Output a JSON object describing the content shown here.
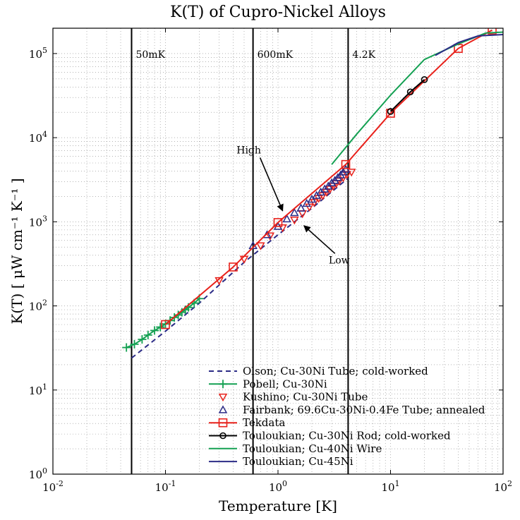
{
  "chart_data": {
    "type": "line",
    "title": "K(T) of Cupro-Nickel Alloys",
    "xlabel": "Temperature [K]",
    "ylabel": "K(T) [ μW cm⁻¹ K⁻¹ ]",
    "xscale": "log",
    "yscale": "log",
    "xlim": [
      0.01,
      100
    ],
    "ylim": [
      1,
      200000
    ],
    "grid": true,
    "x_ticks": [
      {
        "value": 0.01,
        "base": "10",
        "exp": "-2"
      },
      {
        "value": 0.1,
        "base": "10",
        "exp": "-1"
      },
      {
        "value": 1,
        "base": "10",
        "exp": "0"
      },
      {
        "value": 10,
        "base": "10",
        "exp": "1"
      },
      {
        "value": 100,
        "base": "10",
        "exp": "2"
      }
    ],
    "y_ticks": [
      {
        "value": 1,
        "base": "10",
        "exp": "0"
      },
      {
        "value": 10,
        "base": "10",
        "exp": "1"
      },
      {
        "value": 100,
        "base": "10",
        "exp": "2"
      },
      {
        "value": 1000,
        "base": "10",
        "exp": "3"
      },
      {
        "value": 10000,
        "base": "10",
        "exp": "4"
      },
      {
        "value": 100000,
        "base": "10",
        "exp": "5"
      }
    ],
    "vlines": [
      {
        "x": 0.05,
        "label": "50mK"
      },
      {
        "x": 0.6,
        "label": "600mK"
      },
      {
        "x": 4.2,
        "label": "4.2K"
      }
    ],
    "annotations": [
      {
        "text": "High",
        "text_x": 0.55,
        "text_y": 6500,
        "arrow_to_x": 1.1,
        "arrow_to_y": 1350
      },
      {
        "text": "Low",
        "text_x": 3.5,
        "text_y": 320,
        "arrow_to_x": 1.7,
        "arrow_to_y": 900
      }
    ],
    "legend_position": "bottom-right",
    "series": [
      {
        "name": "Olson; Cu-30Ni Tube; cold-worked",
        "color": "#2b2b86",
        "line": "dashed",
        "marker": "none",
        "x": [
          0.05,
          0.1,
          0.2,
          0.5,
          1,
          2,
          4.2
        ],
        "y": [
          24,
          50,
          108,
          330,
          700,
          1450,
          3300
        ]
      },
      {
        "name": "Pobell; Cu-30Ni",
        "color": "#14a052",
        "line": "solid",
        "marker": "plus",
        "x": [
          0.045,
          0.053,
          0.062,
          0.07,
          0.08,
          0.09,
          0.1,
          0.11,
          0.12,
          0.13,
          0.14,
          0.15,
          0.16,
          0.18,
          0.2
        ],
        "y": [
          32,
          35,
          40,
          45,
          51,
          56,
          61,
          67,
          73,
          78,
          84,
          90,
          96,
          108,
          122
        ]
      },
      {
        "name": "Kushino; Cu-30Ni Tube",
        "color": "#e8211b",
        "line": "none",
        "marker": "triangle-down",
        "x": [
          0.3,
          0.5,
          0.7,
          0.85,
          1.1,
          1.4,
          1.65,
          1.9,
          2.1,
          2.3,
          2.5,
          2.7,
          2.9,
          3.1,
          3.3,
          3.5,
          3.8,
          4.1,
          4.5
        ],
        "y": [
          200,
          360,
          520,
          680,
          850,
          1050,
          1250,
          1500,
          1700,
          1900,
          2050,
          2250,
          2450,
          2650,
          2850,
          3050,
          3350,
          3650,
          3900
        ]
      },
      {
        "name": "Fairbank; 69.6Cu-30Ni-0.4Fe Tube; annealed",
        "color": "#2b2b86",
        "line": "none",
        "marker": "triangle-up",
        "x": [
          0.6,
          0.8,
          1.0,
          1.2,
          1.4,
          1.6,
          1.8,
          2.0,
          2.2,
          2.4,
          2.6,
          2.8,
          3.0,
          3.2,
          3.4,
          3.6,
          3.8,
          4.0
        ],
        "y": [
          520,
          700,
          880,
          1080,
          1280,
          1450,
          1650,
          1850,
          2050,
          2250,
          2450,
          2650,
          2900,
          3100,
          3350,
          3600,
          3900,
          4200
        ]
      },
      {
        "name": "Tekdata",
        "color": "#e8211b",
        "line": "solid",
        "marker": "square",
        "x": [
          0.1,
          0.4,
          1.0,
          4.0,
          10,
          40,
          80
        ],
        "y": [
          60,
          290,
          980,
          4800,
          19500,
          115000,
          190000
        ]
      },
      {
        "name": "Touloukian; Cu-30Ni Rod; cold-worked",
        "color": "#000000",
        "line": "solid",
        "marker": "circle",
        "x": [
          10,
          15,
          20
        ],
        "y": [
          20500,
          35000,
          49000
        ]
      },
      {
        "name": "Touloukian; Cu-40Ni Wire",
        "color": "#14a052",
        "line": "solid",
        "marker": "none",
        "x": [
          3,
          5,
          10,
          20,
          40,
          70,
          100
        ],
        "y": [
          4800,
          11000,
          32000,
          85000,
          130000,
          175000,
          180000
        ]
      },
      {
        "name": "Touloukian; Cu-45Ni",
        "color": "#2b2b86",
        "line": "solid",
        "marker": "none",
        "x": [
          25,
          40,
          60,
          100
        ],
        "y": [
          95000,
          135000,
          162000,
          168000
        ]
      }
    ]
  }
}
